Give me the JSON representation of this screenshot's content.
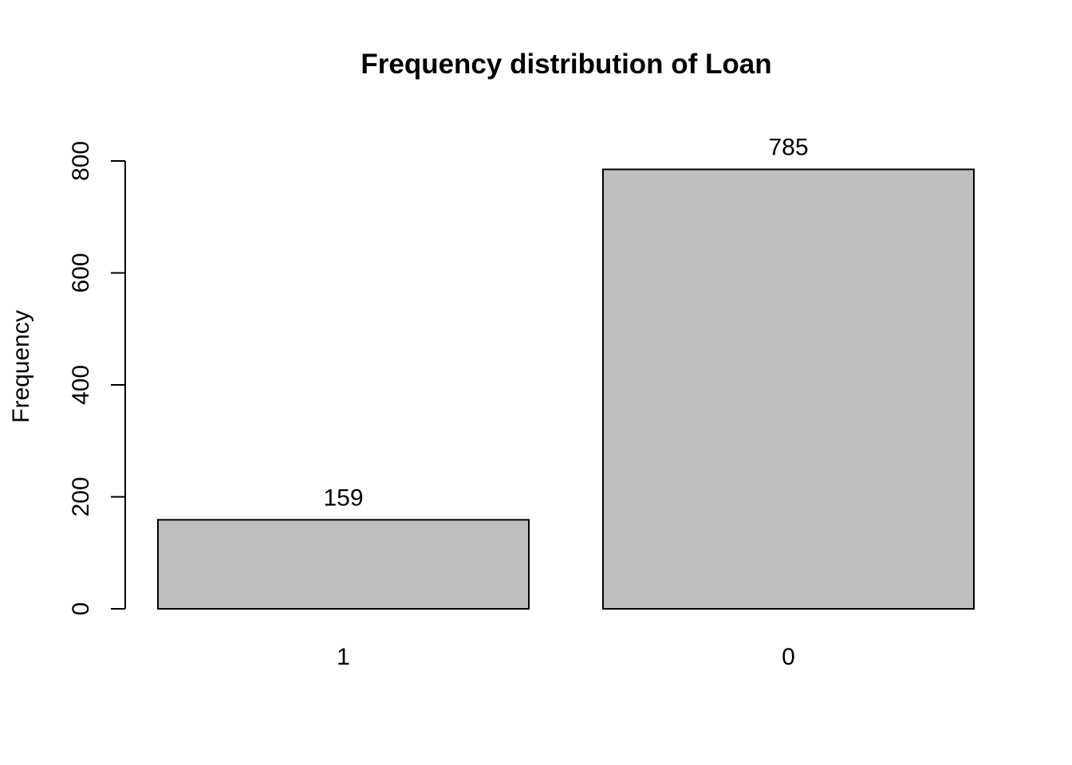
{
  "chart_data": {
    "type": "bar",
    "title": "Frequency distribution of Loan",
    "xlabel": "",
    "ylabel": "Frequency",
    "categories": [
      "1",
      "0"
    ],
    "values": [
      159,
      785
    ],
    "data_labels": [
      "159",
      "785"
    ],
    "yticks": [
      0,
      200,
      400,
      600,
      800
    ],
    "ytick_labels": [
      "0",
      "200",
      "400",
      "600",
      "800"
    ],
    "ylim": [
      0,
      800
    ],
    "grid": false,
    "legend": "none",
    "colors": {
      "bar_fill": "#bebebe",
      "bar_stroke": "#000000",
      "text": "#000000"
    }
  }
}
